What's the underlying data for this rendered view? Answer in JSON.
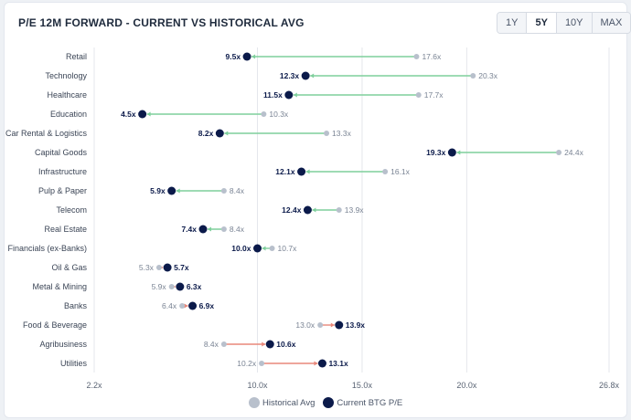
{
  "header": {
    "title": "P/E 12M FORWARD - CURRENT VS HISTORICAL AVG",
    "ranges": [
      "1Y",
      "5Y",
      "10Y",
      "MAX"
    ],
    "active_range": "5Y"
  },
  "colors": {
    "current": "#0b1a4a",
    "historical": "#b8c0cc",
    "decrease_line": "#7fcf9c",
    "increase_line": "#e8877a",
    "grid": "#e4e7ec"
  },
  "chart_data": {
    "type": "dumbbell",
    "title": "P/E 12M FORWARD - CURRENT VS HISTORICAL AVG",
    "categories": [
      "Retail",
      "Technology",
      "Healthcare",
      "Education",
      "Car Rental & Logistics",
      "Capital Goods",
      "Infrastructure",
      "Pulp & Paper",
      "Telecom",
      "Real Estate",
      "Financials (ex-Banks)",
      "Oil & Gas",
      "Metal & Mining",
      "Banks",
      "Food & Beverage",
      "Agribusiness",
      "Utilities"
    ],
    "series": [
      {
        "name": "Historical Avg",
        "values": [
          17.6,
          20.3,
          17.7,
          10.3,
          13.3,
          24.4,
          16.1,
          8.4,
          13.9,
          8.4,
          10.7,
          5.3,
          5.9,
          6.4,
          13.0,
          8.4,
          10.2
        ]
      },
      {
        "name": "Current BTG P/E",
        "values": [
          9.5,
          12.3,
          11.5,
          4.5,
          8.2,
          19.3,
          12.1,
          5.9,
          12.4,
          7.4,
          10.0,
          5.7,
          6.3,
          6.9,
          13.9,
          10.6,
          13.1
        ]
      }
    ],
    "value_suffix": "x",
    "xlim": [
      2.2,
      26.8
    ],
    "x_ticks": [
      2.2,
      10.0,
      15.0,
      20.0,
      26.8
    ],
    "x_tick_labels": [
      "2.2x",
      "10.0x",
      "15.0x",
      "20.0x",
      "26.8x"
    ],
    "grid": "vertical",
    "legend_position": "bottom"
  }
}
